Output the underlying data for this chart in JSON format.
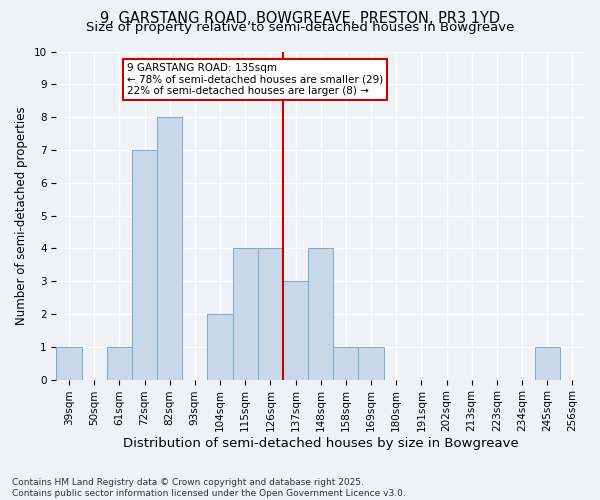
{
  "title_line1": "9, GARSTANG ROAD, BOWGREAVE, PRESTON, PR3 1YD",
  "title_line2": "Size of property relative to semi-detached houses in Bowgreave",
  "xlabel": "Distribution of semi-detached houses by size in Bowgreave",
  "ylabel": "Number of semi-detached properties",
  "categories": [
    "39sqm",
    "50sqm",
    "61sqm",
    "72sqm",
    "82sqm",
    "93sqm",
    "104sqm",
    "115sqm",
    "126sqm",
    "137sqm",
    "148sqm",
    "158sqm",
    "169sqm",
    "180sqm",
    "191sqm",
    "202sqm",
    "213sqm",
    "223sqm",
    "234sqm",
    "245sqm",
    "256sqm"
  ],
  "values": [
    1,
    0,
    1,
    7,
    8,
    0,
    2,
    4,
    4,
    3,
    4,
    1,
    1,
    0,
    0,
    0,
    0,
    0,
    0,
    1,
    0
  ],
  "bar_color": "#c8d8e8",
  "bar_edge_color": "#7aaac8",
  "vline_color": "#cc0000",
  "annotation_title": "9 GARSTANG ROAD: 135sqm",
  "annotation_line1": "← 78% of semi-detached houses are smaller (29)",
  "annotation_line2": "22% of semi-detached houses are larger (8) →",
  "annotation_box_color": "#cc0000",
  "ylim": [
    0,
    10
  ],
  "yticks": [
    0,
    1,
    2,
    3,
    4,
    5,
    6,
    7,
    8,
    9,
    10
  ],
  "background_color": "#eef2f7",
  "grid_color": "#ffffff",
  "footer": "Contains HM Land Registry data © Crown copyright and database right 2025.\nContains public sector information licensed under the Open Government Licence v3.0.",
  "title_fontsize": 10.5,
  "subtitle_fontsize": 9.5,
  "axis_label_fontsize": 8.5,
  "tick_fontsize": 7.5,
  "footer_fontsize": 6.5,
  "annot_fontsize": 7.5
}
